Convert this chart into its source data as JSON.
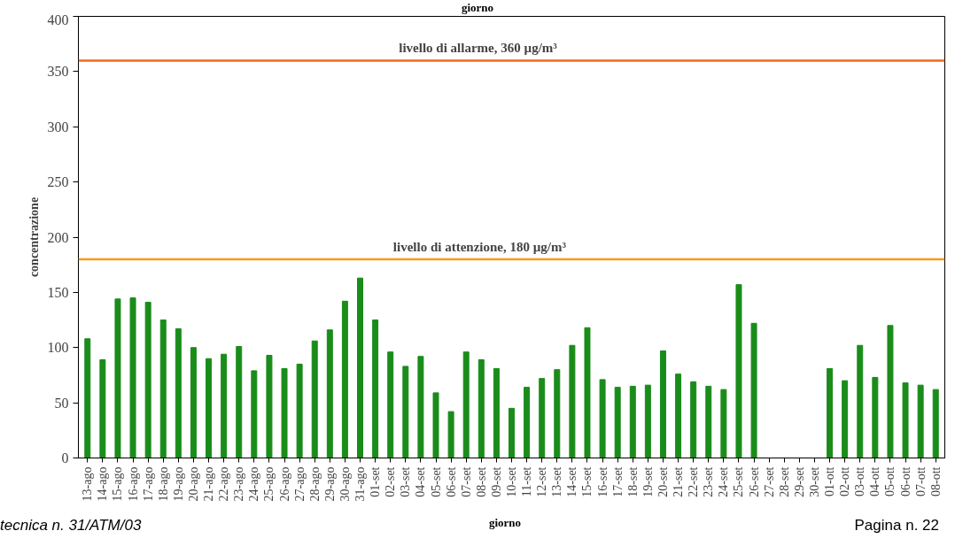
{
  "chart_data": {
    "type": "bar",
    "xlabel": "giorno",
    "ylabel": "concentrazione",
    "categories": [
      "13-ago",
      "14-ago",
      "15-ago",
      "16-ago",
      "17-ago",
      "18-ago",
      "19-ago",
      "20-ago",
      "21-ago",
      "22-ago",
      "23-ago",
      "24-ago",
      "25-ago",
      "26-ago",
      "27-ago",
      "28-ago",
      "29-ago",
      "30-ago",
      "31-ago",
      "01-set",
      "02-set",
      "03-set",
      "04-set",
      "05-set",
      "06-set",
      "07-set",
      "08-set",
      "09-set",
      "10-set",
      "11-set",
      "12-set",
      "13-set",
      "14-set",
      "15-set",
      "16-set",
      "17-set",
      "18-set",
      "19-set",
      "20-set",
      "21-set",
      "22-set",
      "23-set",
      "24-set",
      "25-set",
      "26-set",
      "27-set",
      "28-set",
      "29-set",
      "30-set",
      "01-ott",
      "02-ott",
      "03-ott",
      "04-ott",
      "05-ott",
      "06-ott",
      "07-ott",
      "08-ott"
    ],
    "values": [
      108,
      89,
      144,
      145,
      141,
      125,
      117,
      100,
      90,
      94,
      101,
      79,
      93,
      81,
      85,
      106,
      116,
      142,
      163,
      125,
      96,
      83,
      92,
      59,
      42,
      96,
      89,
      81,
      45,
      64,
      72,
      80,
      102,
      118,
      71,
      64,
      65,
      66,
      97,
      76,
      69,
      65,
      62,
      157,
      122,
      0,
      0,
      0,
      0,
      81,
      70,
      102,
      73,
      120,
      68,
      66,
      62
    ],
    "color": "#1a8c1a",
    "ylim": [
      0,
      400
    ],
    "yticks": [
      0,
      50,
      100,
      150,
      200,
      250,
      300,
      350,
      400
    ],
    "ref_lines": [
      {
        "axis": "y",
        "value": 360,
        "label": "livello di allarme,   360 µg/m³",
        "color": "#f26a1b"
      },
      {
        "axis": "y",
        "value": 180,
        "label": "livello di attenzione,  180 µg/m³",
        "color": "#f59a23"
      }
    ],
    "annotations": [
      "giorno",
      "tecnica n. 31/ATM/03",
      "Pagina n. 22"
    ]
  }
}
